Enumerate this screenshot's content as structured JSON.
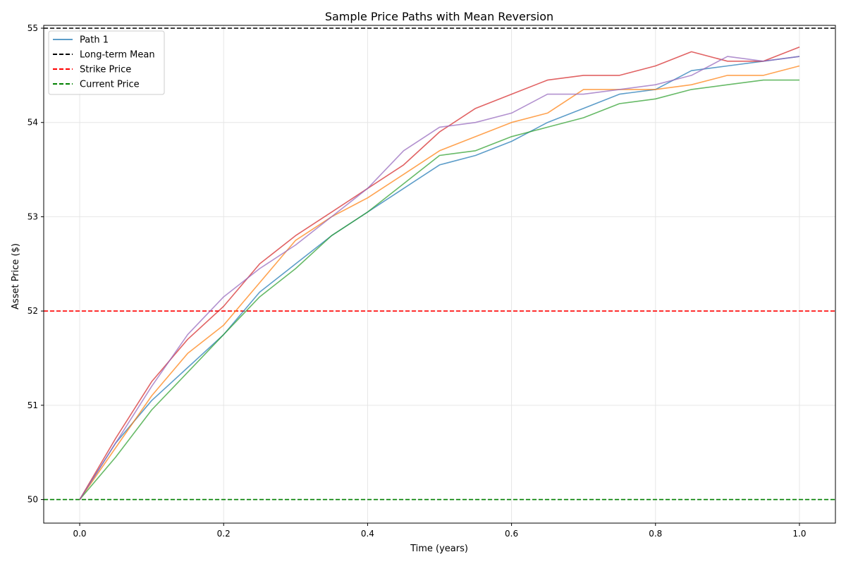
{
  "chart_data": {
    "type": "line",
    "title": "Sample Price Paths with Mean Reversion",
    "xlabel": "Time (years)",
    "ylabel": "Asset Price ($)",
    "xlim": [
      -0.05,
      1.05
    ],
    "ylim": [
      49.75,
      55.03
    ],
    "x_ticks": [
      0.0,
      0.2,
      0.4,
      0.6,
      0.8,
      1.0
    ],
    "x_tick_labels": [
      "0.0",
      "0.2",
      "0.4",
      "0.6",
      "0.8",
      "1.0"
    ],
    "y_ticks": [
      50,
      51,
      52,
      53,
      54,
      55
    ],
    "y_tick_labels": [
      "50",
      "51",
      "52",
      "53",
      "54",
      "55"
    ],
    "grid": true,
    "legend_position": "top-left",
    "x": [
      0.0,
      0.05,
      0.1,
      0.15,
      0.2,
      0.25,
      0.3,
      0.35,
      0.4,
      0.45,
      0.5,
      0.55,
      0.6,
      0.65,
      0.7,
      0.75,
      0.8,
      0.85,
      0.9,
      0.95,
      1.0
    ],
    "series": [
      {
        "name": "Path 1",
        "color": "#1f77b4",
        "values": [
          50.0,
          50.6,
          51.05,
          51.4,
          51.75,
          52.2,
          52.5,
          52.8,
          53.05,
          53.3,
          53.55,
          53.65,
          53.8,
          54.0,
          54.15,
          54.3,
          54.35,
          54.55,
          54.6,
          54.65,
          54.7
        ]
      },
      {
        "name": "",
        "color": "#ff7f0e",
        "values": [
          50.0,
          50.55,
          51.1,
          51.55,
          51.85,
          52.3,
          52.75,
          53.0,
          53.2,
          53.45,
          53.7,
          53.85,
          54.0,
          54.1,
          54.35,
          54.35,
          54.35,
          54.4,
          54.5,
          54.5,
          54.6
        ]
      },
      {
        "name": "",
        "color": "#2ca02c",
        "values": [
          50.0,
          50.45,
          50.95,
          51.35,
          51.75,
          52.15,
          52.45,
          52.8,
          53.05,
          53.35,
          53.65,
          53.7,
          53.85,
          53.95,
          54.05,
          54.2,
          54.25,
          54.35,
          54.4,
          54.45,
          54.45
        ]
      },
      {
        "name": "",
        "color": "#d62728",
        "values": [
          50.0,
          50.65,
          51.25,
          51.7,
          52.05,
          52.5,
          52.8,
          53.05,
          53.3,
          53.55,
          53.9,
          54.15,
          54.3,
          54.45,
          54.5,
          54.5,
          54.6,
          54.75,
          54.65,
          54.65,
          54.8
        ]
      },
      {
        "name": "",
        "color": "#9467bd",
        "values": [
          50.0,
          50.6,
          51.2,
          51.75,
          52.15,
          52.45,
          52.7,
          53.0,
          53.3,
          53.7,
          53.95,
          54.0,
          54.1,
          54.3,
          54.3,
          54.35,
          54.4,
          54.5,
          54.7,
          54.65,
          54.7
        ]
      }
    ],
    "reference_lines": [
      {
        "name": "Long-term Mean",
        "y": 55,
        "color": "#000000"
      },
      {
        "name": "Strike Price",
        "y": 52,
        "color": "#ff0000"
      },
      {
        "name": "Current Price",
        "y": 50,
        "color": "#008000"
      }
    ]
  }
}
